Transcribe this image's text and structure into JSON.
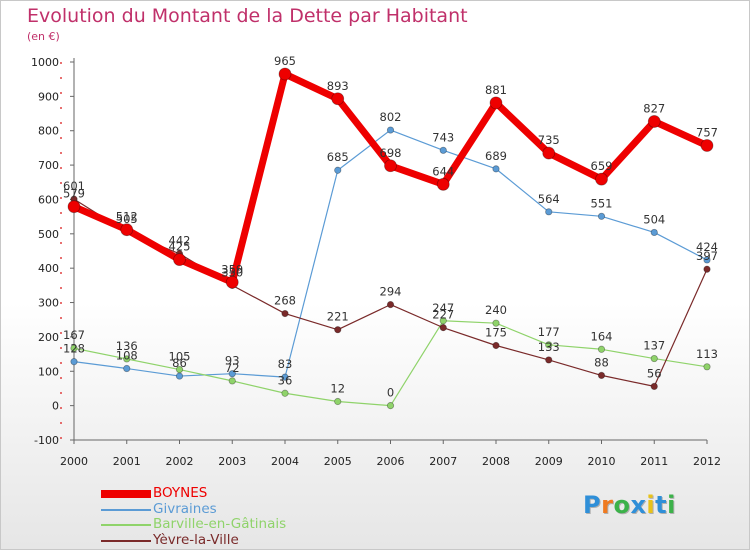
{
  "title": "Evolution du Montant de la Dette par Habitant",
  "subtitle": "(en €)",
  "logo_text": "Proxiti",
  "chart_data": {
    "type": "line",
    "title": "Evolution du Montant de la Dette par Habitant",
    "ylabel": "(en €)",
    "xlabel": "",
    "x": [
      "2000",
      "2001",
      "2002",
      "2003",
      "2004",
      "2005",
      "2006",
      "2007",
      "2008",
      "2009",
      "2010",
      "2011",
      "2012"
    ],
    "ylim": [
      -100,
      1000
    ],
    "yticks": [
      "-100",
      "0",
      "100",
      "200",
      "300",
      "400",
      "500",
      "600",
      "700",
      "800",
      "900",
      "1000"
    ],
    "grid": false,
    "legend_position": "bottom-left",
    "series": [
      {
        "name": "Givraines",
        "color": "#5b9bd5",
        "values": [
          128,
          108,
          86,
          93,
          83,
          685,
          802,
          743,
          689,
          564,
          551,
          504,
          424
        ]
      },
      {
        "name": "Barville-en-Gâtinais",
        "color": "#8fd36a",
        "values": [
          167,
          136,
          105,
          72,
          36,
          12,
          0,
          247,
          240,
          177,
          164,
          137,
          113
        ]
      },
      {
        "name": "Yèvre-la-Ville",
        "color": "#7a2a2a",
        "values": [
          601,
          505,
          442,
          350,
          268,
          221,
          294,
          227,
          175,
          133,
          88,
          56,
          397
        ]
      },
      {
        "name": "BOYNES",
        "color": "#ee0000",
        "values": [
          579,
          512,
          425,
          359,
          965,
          893,
          698,
          644,
          881,
          735,
          659,
          827,
          757
        ]
      }
    ],
    "legend": [
      "BOYNES",
      "Givraines",
      "Barville-en-Gâtinais",
      "Yèvre-la-Ville"
    ]
  }
}
